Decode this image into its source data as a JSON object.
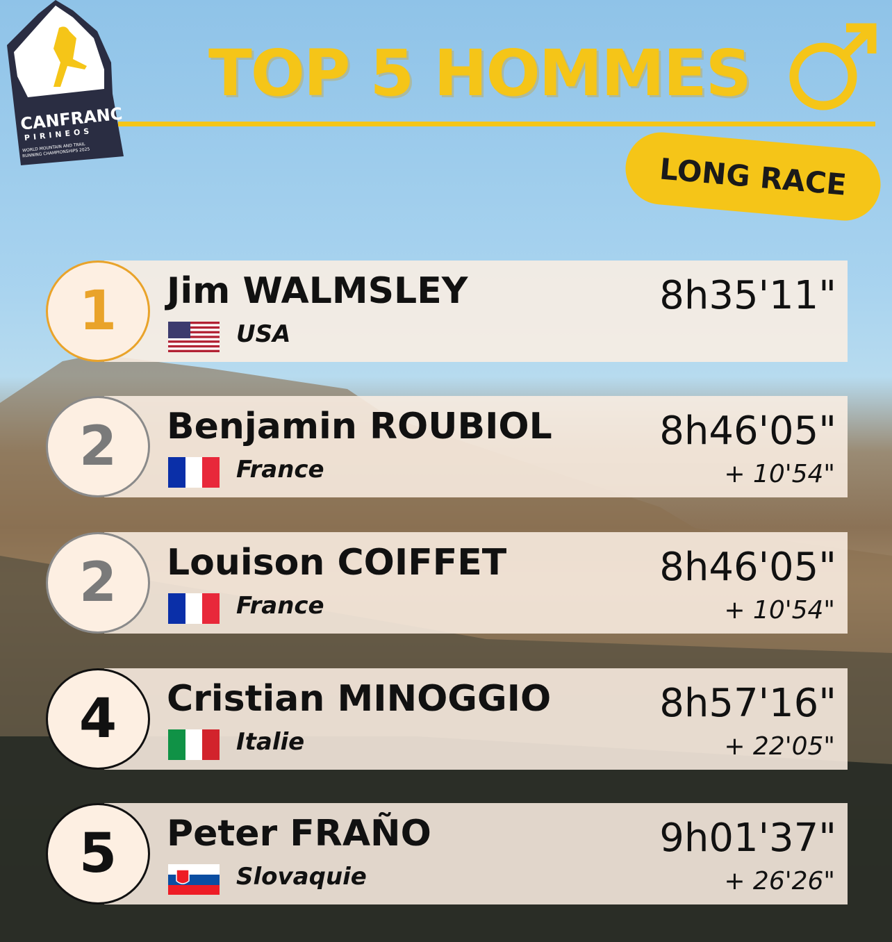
{
  "logo": {
    "name": "CANFRANC",
    "sub": "PIRINEOS",
    "tagline": "WORLD MOUNTAIN AND TRAIL RUNNING CHAMPIONSHIPS 2025"
  },
  "title": "TOP 5 HOMMES",
  "gender_icon": "male-symbol-icon",
  "badge": "LONG RACE",
  "colors": {
    "accent": "#f5c518",
    "gold": "#e9a32a",
    "silver": "#7a7a7a",
    "black": "#111111"
  },
  "results": [
    {
      "rank": "1",
      "name": "Jim WALMSLEY",
      "country": "USA",
      "flag": "usa",
      "time": "8h35'11\"",
      "gap": ""
    },
    {
      "rank": "2",
      "name": "Benjamin ROUBIOL",
      "country": "France",
      "flag": "france",
      "time": "8h46'05\"",
      "gap": "+ 10'54\""
    },
    {
      "rank": "2",
      "name": "Louison COIFFET",
      "country": "France",
      "flag": "france",
      "time": "8h46'05\"",
      "gap": "+ 10'54\""
    },
    {
      "rank": "4",
      "name": "Cristian MINOGGIO",
      "country": "Italie",
      "flag": "italy",
      "time": "8h57'16\"",
      "gap": "+ 22'05\""
    },
    {
      "rank": "5",
      "name": "Peter FRAÑO",
      "country": "Slovaquie",
      "flag": "slovakia",
      "time": "9h01'37\"",
      "gap": "+ 26'26\""
    }
  ]
}
